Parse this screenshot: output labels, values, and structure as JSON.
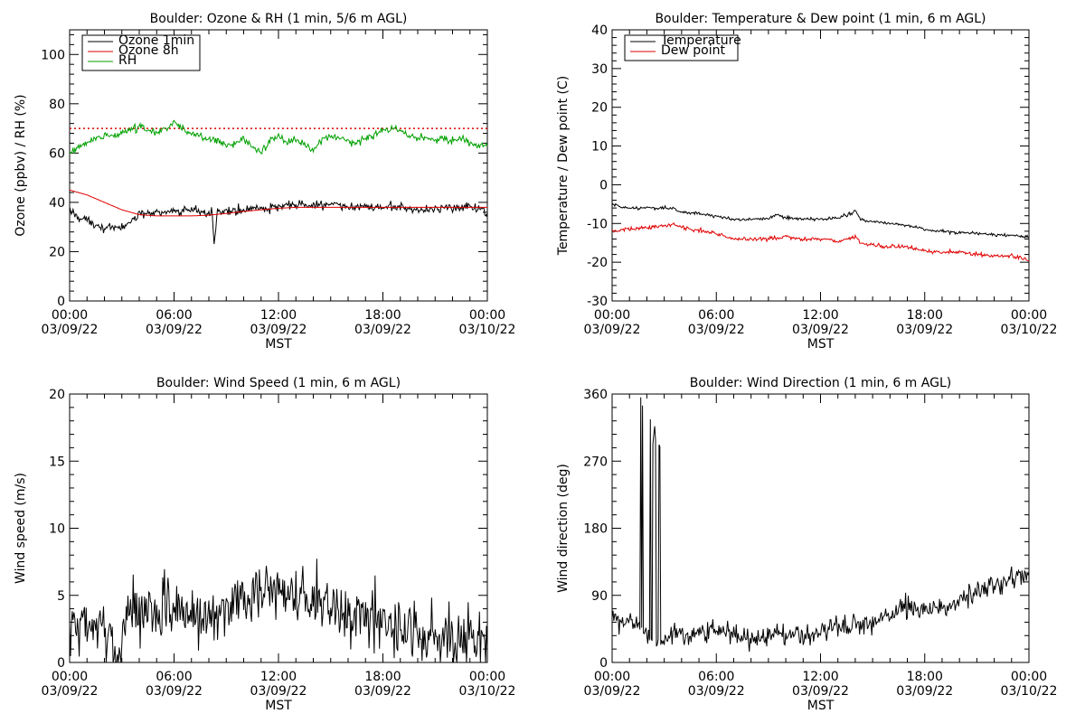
{
  "chart_data": [
    {
      "type": "line",
      "title": "Boulder: Ozone & RH (1 min, 5/6 m AGL)",
      "ylabel": "Ozone (ppbv) / RH (%)",
      "xlabel": "MST",
      "ylim": [
        0,
        110
      ],
      "yticks": [
        0,
        20,
        40,
        60,
        80,
        100
      ],
      "xticks": [
        {
          "x": 0,
          "l1": "00:00",
          "l2": "03/09/22"
        },
        {
          "x": 6,
          "l1": "06:00",
          "l2": "03/09/22"
        },
        {
          "x": 12,
          "l1": "12:00",
          "l2": "03/09/22"
        },
        {
          "x": 18,
          "l1": "18:00",
          "l2": "03/09/22"
        },
        {
          "x": 24,
          "l1": "00:00",
          "l2": "03/10/22"
        }
      ],
      "legend": "top-left",
      "reference_line": {
        "y": 70,
        "color": "#e00000",
        "style": "dotted"
      },
      "series": [
        {
          "name": "Ozone 1min",
          "color": "#000000",
          "noise": 1.2,
          "x": [
            0,
            0.5,
            1,
            1.5,
            2,
            2.5,
            3,
            3.5,
            4,
            5,
            6,
            7,
            8,
            8.2,
            8.3,
            8.5,
            9,
            10,
            11,
            12,
            13,
            14,
            15,
            16,
            17,
            18,
            19,
            20,
            21,
            22,
            23,
            23.7,
            24
          ],
          "y": [
            37,
            34,
            33,
            31,
            30,
            29,
            30,
            32,
            35,
            36,
            36,
            37,
            36,
            36,
            23,
            36,
            36,
            37,
            38,
            38,
            39,
            39,
            39,
            38,
            38,
            38,
            38,
            37,
            37,
            38,
            38,
            38,
            35
          ]
        },
        {
          "name": "Ozone 8h",
          "color": "#e00000",
          "noise": 0,
          "x": [
            0,
            1,
            2,
            3,
            4,
            5,
            6,
            7,
            8,
            9,
            10,
            11,
            12,
            13,
            14,
            15,
            16,
            17,
            18,
            19,
            20,
            21,
            22,
            23,
            24
          ],
          "y": [
            45,
            43,
            40,
            37,
            35,
            34.5,
            34.5,
            34.5,
            34.8,
            35.5,
            36.3,
            37,
            37.6,
            38,
            38,
            38,
            38,
            38,
            38,
            38,
            38,
            38,
            38,
            38,
            38
          ]
        },
        {
          "name": "RH",
          "color": "#00a000",
          "noise": 1.0,
          "x": [
            0,
            0.5,
            1,
            1.5,
            2,
            2.5,
            3,
            3.5,
            4,
            4.5,
            5,
            5.5,
            6,
            6.5,
            7,
            7.5,
            8,
            8.5,
            9,
            9.5,
            10,
            10.5,
            11,
            11.5,
            12,
            12.5,
            13,
            13.5,
            14,
            14.5,
            15,
            15.5,
            16,
            16.5,
            17,
            17.5,
            18,
            18.5,
            19,
            19.5,
            20,
            20.5,
            21,
            21.5,
            22,
            22.5,
            23,
            23.5,
            24
          ],
          "y": [
            60,
            62,
            64,
            66,
            67,
            67,
            68,
            70,
            71,
            69,
            68,
            70,
            72,
            70,
            68,
            67,
            66,
            65,
            63,
            64,
            66,
            62,
            60,
            65,
            67,
            64,
            66,
            63,
            61,
            65,
            67,
            66,
            65,
            64,
            66,
            67,
            69,
            70,
            69,
            67,
            66,
            66,
            65,
            66,
            65,
            66,
            64,
            63,
            63
          ]
        }
      ]
    },
    {
      "type": "line",
      "title": "Boulder: Temperature & Dew point (1 min, 6 m AGL)",
      "ylabel": "Temperature / Dew point (C)",
      "xlabel": "MST",
      "ylim": [
        -30,
        40
      ],
      "yticks": [
        -30,
        -20,
        -10,
        0,
        10,
        20,
        30,
        40
      ],
      "xticks": [
        {
          "x": 0,
          "l1": "00:00",
          "l2": "03/09/22"
        },
        {
          "x": 6,
          "l1": "06:00",
          "l2": "03/09/22"
        },
        {
          "x": 12,
          "l1": "12:00",
          "l2": "03/09/22"
        },
        {
          "x": 18,
          "l1": "18:00",
          "l2": "03/09/22"
        },
        {
          "x": 24,
          "l1": "00:00",
          "l2": "03/10/22"
        }
      ],
      "legend": "top-left",
      "series": [
        {
          "name": "Temperature",
          "color": "#000000",
          "noise": 0.25,
          "x": [
            0,
            0.5,
            1,
            2,
            3,
            3.5,
            4,
            5,
            6,
            7,
            8,
            9,
            9.5,
            10,
            11,
            12,
            13,
            13.8,
            14,
            14.3,
            15,
            16,
            17,
            18,
            19,
            20,
            21,
            22,
            23,
            24
          ],
          "y": [
            -5,
            -5.8,
            -6,
            -6,
            -6,
            -6.2,
            -7,
            -7.5,
            -8,
            -9,
            -9,
            -8.5,
            -7.8,
            -8.5,
            -8.8,
            -9,
            -8.5,
            -7.5,
            -6.5,
            -9,
            -9.5,
            -10,
            -10.5,
            -11.5,
            -12,
            -12.5,
            -12.5,
            -13,
            -13,
            -13.5
          ]
        },
        {
          "name": "Dew point",
          "color": "#e00000",
          "noise": 0.35,
          "x": [
            0,
            1,
            2,
            3,
            3.5,
            4,
            5,
            6,
            7,
            8,
            9,
            10,
            11,
            12,
            13,
            14,
            14.3,
            15,
            16,
            17,
            18,
            19,
            20,
            21,
            22,
            23,
            24
          ],
          "y": [
            -12,
            -11.5,
            -11,
            -10.5,
            -10,
            -11,
            -12,
            -12.5,
            -14,
            -14,
            -14,
            -13.5,
            -14,
            -14,
            -14.5,
            -13.5,
            -15,
            -15.5,
            -16,
            -16,
            -17,
            -17.5,
            -17.5,
            -18,
            -18.5,
            -18.5,
            -19.5
          ]
        }
      ]
    },
    {
      "type": "line",
      "title": "Boulder: Wind Speed (1 min, 6 m AGL)",
      "ylabel": "Wind speed (m/s)",
      "xlabel": "MST",
      "ylim": [
        0,
        20
      ],
      "yticks": [
        0,
        5,
        10,
        15,
        20
      ],
      "xticks": [
        {
          "x": 0,
          "l1": "00:00",
          "l2": "03/09/22"
        },
        {
          "x": 6,
          "l1": "06:00",
          "l2": "03/09/22"
        },
        {
          "x": 12,
          "l1": "12:00",
          "l2": "03/09/22"
        },
        {
          "x": 18,
          "l1": "18:00",
          "l2": "03/09/22"
        },
        {
          "x": 24,
          "l1": "00:00",
          "l2": "03/10/22"
        }
      ],
      "legend": "none",
      "series": [
        {
          "name": "",
          "color": "#000000",
          "noise": 1.5,
          "min": 0,
          "x": [
            0,
            1,
            2,
            2.5,
            3,
            3.2,
            3.5,
            4,
            5,
            6,
            7,
            8,
            9,
            10,
            11,
            12,
            12.5,
            13,
            14,
            15,
            16,
            17,
            18,
            19,
            20,
            21,
            22,
            23,
            24
          ],
          "y": [
            2.5,
            2.5,
            2,
            1.2,
            1.2,
            3,
            4,
            4,
            3.5,
            4,
            3.5,
            3.5,
            4,
            5,
            5.2,
            5.5,
            5.5,
            5,
            4.5,
            4,
            3.5,
            3,
            3,
            2.5,
            2.2,
            2,
            2,
            2,
            1.5
          ]
        }
      ]
    },
    {
      "type": "line",
      "title": "Boulder: Wind Direction (1 min, 6 m AGL)",
      "ylabel": "Wind direction (deg)",
      "xlabel": "MST",
      "ylim": [
        0,
        360
      ],
      "yticks": [
        0,
        90,
        180,
        270,
        360
      ],
      "xticks": [
        {
          "x": 0,
          "l1": "00:00",
          "l2": "03/09/22"
        },
        {
          "x": 6,
          "l1": "06:00",
          "l2": "03/09/22"
        },
        {
          "x": 12,
          "l1": "12:00",
          "l2": "03/09/22"
        },
        {
          "x": 18,
          "l1": "18:00",
          "l2": "03/09/22"
        },
        {
          "x": 24,
          "l1": "00:00",
          "l2": "03/10/22"
        }
      ],
      "legend": "none",
      "spikes": {
        "x_range": [
          1.6,
          2.9
        ],
        "max": 358
      },
      "series": [
        {
          "name": "",
          "color": "#000000",
          "noise": 10,
          "min": 0,
          "x": [
            0,
            1,
            2,
            2.5,
            3,
            3.5,
            4,
            5,
            6,
            7,
            8,
            9,
            10,
            11,
            12,
            13,
            14,
            15,
            16,
            17,
            18,
            19,
            20,
            21,
            22,
            23,
            24
          ],
          "y": [
            55,
            55,
            40,
            25,
            30,
            40,
            35,
            40,
            45,
            35,
            30,
            35,
            35,
            35,
            40,
            45,
            50,
            55,
            65,
            75,
            70,
            75,
            85,
            95,
            105,
            110,
            120
          ]
        }
      ]
    }
  ]
}
